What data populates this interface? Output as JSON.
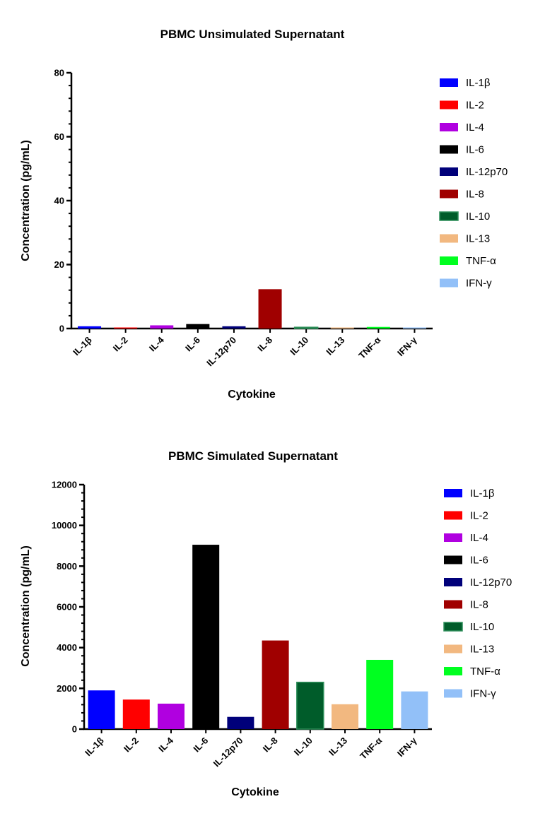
{
  "chart_data": [
    {
      "type": "bar",
      "title": "PBMC Unsimulated Supernatant",
      "xlabel": "Cytokine",
      "ylabel": "Concentration (pg/mL)",
      "ylim": [
        0,
        80
      ],
      "yticks": [
        0,
        20,
        40,
        60,
        80
      ],
      "categories": [
        "IL-1β",
        "IL-2",
        "IL-4",
        "IL-6",
        "IL-12p70",
        "IL-8",
        "IL-10",
        "IL-13",
        "TNF-α",
        "IFN-γ"
      ],
      "values": [
        0.7,
        0.1,
        1.0,
        1.4,
        0.7,
        12.3,
        0.4,
        0.1,
        0.5,
        0.1
      ],
      "colors": [
        "#0000ff",
        "#ff0000",
        "#b000e0",
        "#000000",
        "#00007a",
        "#a00000",
        "#005c2a",
        "#f2b880",
        "#00ff20",
        "#92c0f8"
      ],
      "legend": {
        "placement": "right",
        "entries": [
          "IL-1β",
          "IL-2",
          "IL-4",
          "IL-6",
          "IL-12p70",
          "IL-8",
          "IL-10",
          "IL-13",
          "TNF-α",
          "IFN-γ"
        ]
      }
    },
    {
      "type": "bar",
      "title": "PBMC Simulated Supernatant",
      "xlabel": "Cytokine",
      "ylabel": "Concentration (pg/mL)",
      "ylim": [
        0,
        12000
      ],
      "yticks": [
        0,
        2000,
        4000,
        6000,
        8000,
        10000,
        12000
      ],
      "categories": [
        "IL-1β",
        "IL-2",
        "IL-4",
        "IL-6",
        "IL-12p70",
        "IL-8",
        "IL-10",
        "IL-13",
        "TNF-α",
        "IFN-γ"
      ],
      "values": [
        1900,
        1450,
        1250,
        9050,
        600,
        4350,
        2300,
        1220,
        3400,
        1850
      ],
      "colors": [
        "#0000ff",
        "#ff0000",
        "#b000e0",
        "#000000",
        "#00007a",
        "#a00000",
        "#005c2a",
        "#f2b880",
        "#00ff20",
        "#92c0f8"
      ],
      "legend": {
        "placement": "right",
        "entries": [
          "IL-1β",
          "IL-2",
          "IL-4",
          "IL-6",
          "IL-12p70",
          "IL-8",
          "IL-10",
          "IL-13",
          "TNF-α",
          "IFN-γ"
        ]
      }
    }
  ]
}
